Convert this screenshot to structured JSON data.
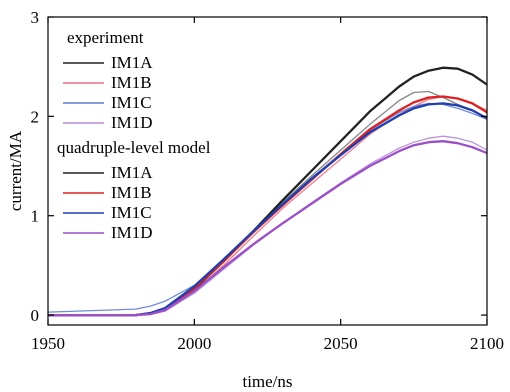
{
  "chart_data": {
    "type": "line",
    "xlabel": "time/ns",
    "ylabel": "current/MA",
    "xlim": [
      1950,
      2100
    ],
    "ylim": [
      -0.1,
      3
    ],
    "xticks": [
      1950,
      2000,
      2050,
      2100
    ],
    "yticks": [
      0,
      1,
      2,
      3
    ],
    "grid": false,
    "legend_position": "top-left",
    "legend_groups": [
      {
        "title": "experiment",
        "entries": [
          {
            "label": "IM1A",
            "color": "#222222"
          },
          {
            "label": "IM1B",
            "color": "#ee6f86"
          },
          {
            "label": "IM1C",
            "color": "#5f7fd0"
          },
          {
            "label": "IM1D",
            "color": "#b58ad8"
          }
        ]
      },
      {
        "title": "quadruple-level model",
        "entries": [
          {
            "label": "IM1A",
            "color": "#222222"
          },
          {
            "label": "IM1B",
            "color": "#dd2222"
          },
          {
            "label": "IM1C",
            "color": "#1f3fb0"
          },
          {
            "label": "IM1D",
            "color": "#9b4fc8"
          }
        ]
      }
    ],
    "series": [
      {
        "name": "IM1A",
        "group": "experiment",
        "color": "#7a7a7a",
        "x": [
          1950,
          1980,
          1985,
          1990,
          2000,
          2010,
          2020,
          2030,
          2040,
          2050,
          2060,
          2070,
          2075,
          2080,
          2085,
          2090,
          2095,
          2100
        ],
        "y": [
          0,
          0,
          0.02,
          0.06,
          0.27,
          0.55,
          0.84,
          1.13,
          1.4,
          1.66,
          1.92,
          2.16,
          2.24,
          2.25,
          2.19,
          2.12,
          2.06,
          1.98
        ]
      },
      {
        "name": "IM1B",
        "group": "experiment",
        "color": "#ee6f86",
        "x": [
          1950,
          1980,
          1985,
          1990,
          2000,
          2010,
          2020,
          2030,
          2040,
          2050,
          2060,
          2070,
          2075,
          2080,
          2085,
          2090,
          2095,
          2100
        ],
        "y": [
          0,
          0,
          0.01,
          0.04,
          0.24,
          0.5,
          0.79,
          1.07,
          1.32,
          1.57,
          1.82,
          2.02,
          2.1,
          2.17,
          2.2,
          2.18,
          2.13,
          2.06
        ]
      },
      {
        "name": "IM1C",
        "group": "experiment",
        "color": "#5f7fd0",
        "x": [
          1950,
          1970,
          1980,
          1985,
          1990,
          2000,
          2010,
          2020,
          2030,
          2040,
          2050,
          2060,
          2070,
          2075,
          2080,
          2085,
          2090,
          2095,
          2100
        ],
        "y": [
          0.03,
          0.05,
          0.06,
          0.09,
          0.14,
          0.3,
          0.56,
          0.84,
          1.12,
          1.38,
          1.62,
          1.86,
          2.04,
          2.1,
          2.13,
          2.12,
          2.08,
          2.03,
          1.97
        ]
      },
      {
        "name": "IM1D",
        "group": "experiment",
        "color": "#b58ad8",
        "x": [
          1950,
          1980,
          1985,
          1990,
          2000,
          2010,
          2020,
          2030,
          2040,
          2050,
          2060,
          2070,
          2075,
          2080,
          2085,
          2090,
          2095,
          2100
        ],
        "y": [
          0,
          0,
          0.01,
          0.04,
          0.22,
          0.46,
          0.7,
          0.92,
          1.13,
          1.33,
          1.52,
          1.68,
          1.74,
          1.78,
          1.8,
          1.78,
          1.74,
          1.66
        ]
      },
      {
        "name": "IM1A",
        "group": "quadruple-level model",
        "color": "#222222",
        "x": [
          1950,
          1980,
          1985,
          1990,
          2000,
          2010,
          2020,
          2030,
          2040,
          2050,
          2060,
          2070,
          2075,
          2080,
          2085,
          2090,
          2095,
          2100
        ],
        "y": [
          0,
          0,
          0.02,
          0.06,
          0.26,
          0.54,
          0.84,
          1.15,
          1.45,
          1.75,
          2.05,
          2.3,
          2.4,
          2.46,
          2.49,
          2.48,
          2.42,
          2.32
        ]
      },
      {
        "name": "IM1B",
        "group": "quadruple-level model",
        "color": "#dd2222",
        "x": [
          1950,
          1980,
          1985,
          1990,
          2000,
          2010,
          2020,
          2030,
          2040,
          2050,
          2060,
          2070,
          2075,
          2080,
          2085,
          2090,
          2095,
          2100
        ],
        "y": [
          0,
          0,
          0.02,
          0.06,
          0.27,
          0.54,
          0.83,
          1.1,
          1.36,
          1.62,
          1.87,
          2.06,
          2.14,
          2.19,
          2.2,
          2.18,
          2.13,
          2.04
        ]
      },
      {
        "name": "IM1C",
        "group": "quadruple-level model",
        "color": "#1f3fb0",
        "x": [
          1950,
          1980,
          1985,
          1990,
          2000,
          2010,
          2020,
          2030,
          2040,
          2050,
          2060,
          2070,
          2075,
          2080,
          2085,
          2090,
          2095,
          2100
        ],
        "y": [
          0,
          0,
          0.02,
          0.07,
          0.29,
          0.56,
          0.84,
          1.11,
          1.37,
          1.61,
          1.84,
          2.01,
          2.08,
          2.12,
          2.13,
          2.11,
          2.06,
          1.98
        ]
      },
      {
        "name": "IM1D",
        "group": "quadruple-level model",
        "color": "#9b4fc8",
        "x": [
          1950,
          1980,
          1985,
          1990,
          2000,
          2010,
          2020,
          2030,
          2040,
          2050,
          2060,
          2070,
          2075,
          2080,
          2085,
          2090,
          2095,
          2100
        ],
        "y": [
          0,
          0,
          0.01,
          0.05,
          0.24,
          0.48,
          0.71,
          0.92,
          1.12,
          1.32,
          1.5,
          1.65,
          1.71,
          1.74,
          1.75,
          1.73,
          1.69,
          1.63
        ]
      }
    ]
  }
}
